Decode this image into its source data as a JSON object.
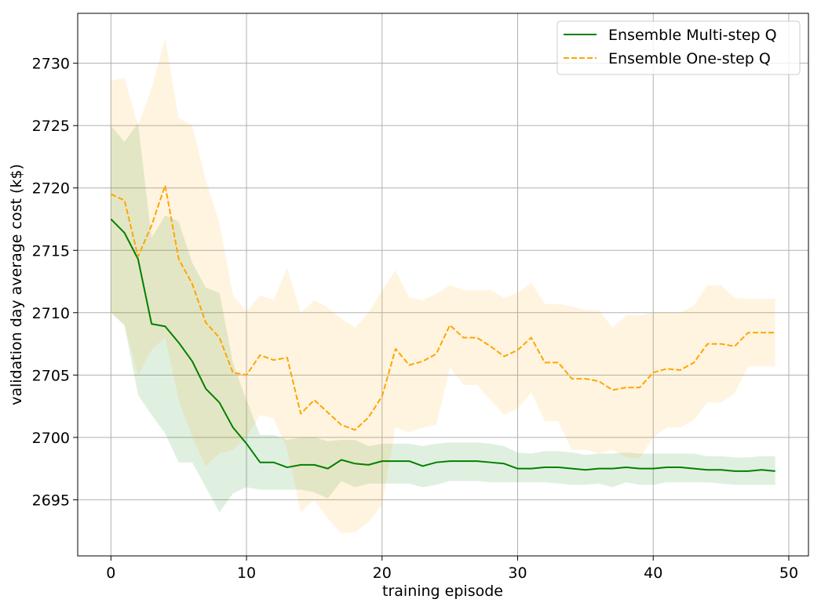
{
  "chart_data": {
    "type": "line",
    "title": "",
    "xlabel": "training episode",
    "ylabel": "validation day average cost (k$)",
    "xlim": [
      -2.45,
      51.45
    ],
    "ylim": [
      2690.5,
      2734.0
    ],
    "xticks": [
      0,
      10,
      20,
      30,
      40,
      50
    ],
    "yticks": [
      2695,
      2700,
      2705,
      2710,
      2715,
      2720,
      2725,
      2730
    ],
    "grid": true,
    "legend_position": "top-right",
    "x": [
      0,
      1,
      2,
      3,
      4,
      5,
      6,
      7,
      8,
      9,
      10,
      11,
      12,
      13,
      14,
      15,
      16,
      17,
      18,
      19,
      20,
      21,
      22,
      23,
      24,
      25,
      26,
      27,
      28,
      29,
      30,
      31,
      32,
      33,
      34,
      35,
      36,
      37,
      38,
      39,
      40,
      41,
      42,
      43,
      44,
      45,
      46,
      47,
      48,
      49
    ],
    "series": [
      {
        "name": "Ensemble Multi-step Q",
        "color": "#008000",
        "band_color": "#008000",
        "line_style": "solid",
        "values": [
          2717.5,
          2716.4,
          2714.3,
          2709.1,
          2708.9,
          2707.6,
          2706.1,
          2703.9,
          2702.8,
          2700.8,
          2699.5,
          2698.0,
          2698.0,
          2697.6,
          2697.8,
          2697.8,
          2697.5,
          2698.2,
          2697.9,
          2697.8,
          2698.1,
          2698.1,
          2698.1,
          2697.7,
          2698.0,
          2698.1,
          2698.1,
          2698.1,
          2698.0,
          2697.9,
          2697.5,
          2697.5,
          2697.6,
          2697.6,
          2697.5,
          2697.4,
          2697.5,
          2697.5,
          2697.6,
          2697.5,
          2697.5,
          2697.6,
          2697.6,
          2697.5,
          2697.4,
          2697.4,
          2697.3,
          2697.3,
          2697.4,
          2697.3
        ],
        "lower": [
          2710.0,
          2709.0,
          2703.4,
          2701.8,
          2700.3,
          2698.0,
          2698.0,
          2696.0,
          2694.0,
          2695.5,
          2696.0,
          2695.8,
          2695.8,
          2695.8,
          2695.8,
          2695.6,
          2695.1,
          2696.5,
          2696.0,
          2696.3,
          2696.3,
          2696.3,
          2696.3,
          2696.0,
          2696.2,
          2696.5,
          2696.5,
          2696.5,
          2696.4,
          2696.4,
          2696.4,
          2696.4,
          2696.4,
          2696.3,
          2696.2,
          2696.2,
          2696.3,
          2696.0,
          2696.4,
          2696.2,
          2696.2,
          2696.4,
          2696.4,
          2696.4,
          2696.4,
          2696.3,
          2696.2,
          2696.2,
          2696.2,
          2696.2
        ],
        "upper": [
          2725.0,
          2723.7,
          2725.2,
          2716.0,
          2717.8,
          2717.3,
          2714.0,
          2712.0,
          2711.6,
          2706.0,
          2703.0,
          2700.2,
          2700.2,
          2699.8,
          2700.0,
          2700.0,
          2699.7,
          2699.8,
          2699.8,
          2699.3,
          2699.5,
          2699.5,
          2699.5,
          2699.3,
          2699.5,
          2699.6,
          2699.6,
          2699.6,
          2699.5,
          2699.3,
          2698.8,
          2698.7,
          2698.9,
          2698.9,
          2698.8,
          2698.6,
          2698.7,
          2698.7,
          2698.8,
          2698.7,
          2698.7,
          2698.7,
          2698.7,
          2698.7,
          2698.5,
          2698.5,
          2698.4,
          2698.4,
          2698.5,
          2698.5
        ]
      },
      {
        "name": "Ensemble One-step Q",
        "color": "#ffa500",
        "band_color": "#ffa500",
        "line_style": "dashed",
        "values": [
          2719.5,
          2719.0,
          2714.5,
          2717.0,
          2720.2,
          2714.3,
          2712.3,
          2709.2,
          2708.0,
          2705.2,
          2705.0,
          2706.6,
          2706.2,
          2706.4,
          2701.9,
          2703.0,
          2702.0,
          2701.0,
          2700.6,
          2701.6,
          2703.3,
          2707.1,
          2705.8,
          2706.1,
          2706.7,
          2709.0,
          2708.0,
          2708.0,
          2707.3,
          2706.5,
          2707.0,
          2708.0,
          2706.0,
          2706.0,
          2704.7,
          2704.7,
          2704.5,
          2703.8,
          2704.0,
          2704.0,
          2705.2,
          2705.5,
          2705.4,
          2706.0,
          2707.5,
          2707.5,
          2707.3,
          2708.4,
          2708.4,
          2708.4
        ],
        "lower": [
          2710.0,
          2709.0,
          2705.0,
          2707.0,
          2708.0,
          2703.0,
          2700.0,
          2697.7,
          2698.7,
          2699.0,
          2700.0,
          2701.8,
          2701.5,
          2699.0,
          2694.0,
          2695.0,
          2693.5,
          2692.3,
          2692.4,
          2693.2,
          2694.6,
          2700.8,
          2700.4,
          2700.8,
          2701.0,
          2705.6,
          2704.2,
          2704.2,
          2703.0,
          2701.8,
          2702.3,
          2703.6,
          2701.3,
          2701.3,
          2699.0,
          2699.0,
          2698.7,
          2699.0,
          2698.4,
          2698.3,
          2700.0,
          2700.8,
          2700.8,
          2701.4,
          2702.8,
          2702.8,
          2703.5,
          2705.7,
          2705.7,
          2705.7
        ],
        "upper": [
          2728.6,
          2728.8,
          2725.0,
          2728.0,
          2732.0,
          2725.6,
          2725.0,
          2720.6,
          2717.2,
          2711.4,
          2710.1,
          2711.4,
          2711.0,
          2713.6,
          2710.0,
          2711.0,
          2710.4,
          2709.5,
          2708.8,
          2710.0,
          2711.8,
          2713.4,
          2711.2,
          2711.0,
          2711.5,
          2712.2,
          2711.8,
          2711.8,
          2711.8,
          2711.2,
          2711.6,
          2712.4,
          2710.7,
          2710.7,
          2710.5,
          2710.2,
          2710.2,
          2708.8,
          2709.8,
          2709.8,
          2710.0,
          2710.0,
          2710.0,
          2710.6,
          2712.2,
          2712.2,
          2711.2,
          2711.1,
          2711.1,
          2711.1
        ]
      }
    ]
  }
}
